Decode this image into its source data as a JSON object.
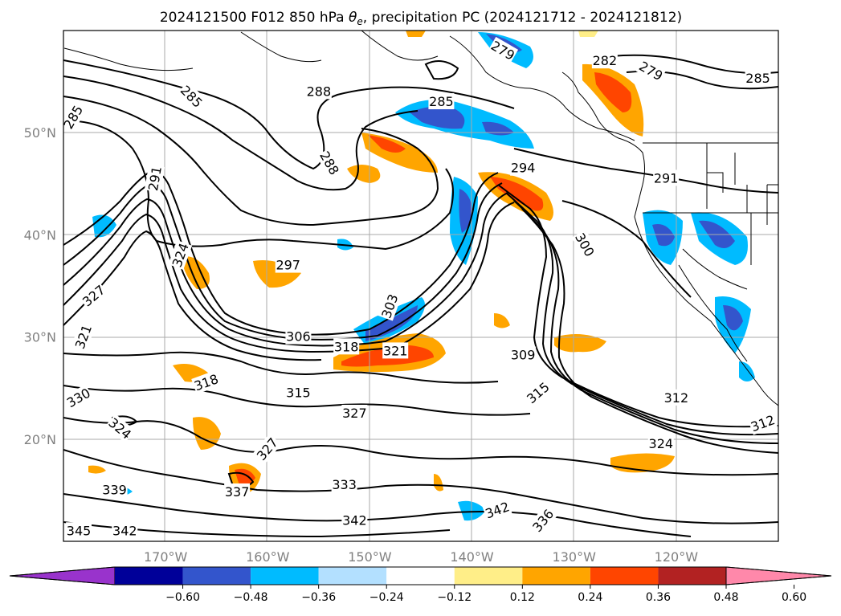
{
  "title": {
    "prefix": "2024121500 F012 850 hPa ",
    "theta": "θ",
    "theta_sub": "e",
    "suffix": ", precipitation PC (2024121712 - 2024121812)"
  },
  "axes": {
    "lon_ticks": [
      {
        "lon": -170,
        "label": "170°W"
      },
      {
        "lon": -160,
        "label": "160°W"
      },
      {
        "lon": -150,
        "label": "150°W"
      },
      {
        "lon": -140,
        "label": "140°W"
      },
      {
        "lon": -130,
        "label": "130°W"
      },
      {
        "lon": -120,
        "label": "120°W"
      }
    ],
    "lat_ticks": [
      {
        "lat": 50,
        "label": "50°N"
      },
      {
        "lat": 40,
        "label": "40°N"
      },
      {
        "lat": 30,
        "label": "30°N"
      },
      {
        "lat": 20,
        "label": "20°N"
      }
    ],
    "lon_range": [
      -180,
      -110
    ],
    "lat_range": [
      10,
      60
    ]
  },
  "colorbar": {
    "colors": [
      "#9933cc",
      "#000099",
      "#3355cc",
      "#00bbff",
      "#b3e0ff",
      "#ffffff",
      "#ffee88",
      "#ffa500",
      "#ff4500",
      "#b22222",
      "#ff88aa"
    ],
    "labels": [
      "−0.60",
      "−0.48",
      "−0.36",
      "−0.24",
      "−0.12",
      "0.12",
      "0.24",
      "0.36",
      "0.48",
      "0.60"
    ],
    "values": [
      -0.6,
      -0.48,
      -0.36,
      -0.24,
      -0.12,
      0.12,
      0.24,
      0.36,
      0.48,
      0.6
    ]
  },
  "contour_labels": [
    {
      "text": "285",
      "lon": -179,
      "lat": 51.5,
      "rot": -60
    },
    {
      "text": "285",
      "lon": -167.5,
      "lat": 53.5,
      "rot": 45
    },
    {
      "text": "288",
      "lon": -155,
      "lat": 54,
      "rot": 0
    },
    {
      "text": "288",
      "lon": -154,
      "lat": 47,
      "rot": 60
    },
    {
      "text": "285",
      "lon": -143,
      "lat": 53,
      "rot": 0
    },
    {
      "text": "291",
      "lon": -171,
      "lat": 45.5,
      "rot": -80
    },
    {
      "text": "297",
      "lon": -158,
      "lat": 37,
      "rot": 0
    },
    {
      "text": "294",
      "lon": -135,
      "lat": 46.5,
      "rot": 0
    },
    {
      "text": "291",
      "lon": -121,
      "lat": 45.5,
      "rot": 0
    },
    {
      "text": "300",
      "lon": -129,
      "lat": 39,
      "rot": 60
    },
    {
      "text": "282",
      "lon": -127,
      "lat": 57,
      "rot": 0
    },
    {
      "text": "279",
      "lon": -122.5,
      "lat": 56,
      "rot": 30
    },
    {
      "text": "285",
      "lon": -112,
      "lat": 55.3,
      "rot": 0
    },
    {
      "text": "279",
      "lon": -137,
      "lat": 58,
      "rot": 30
    },
    {
      "text": "327",
      "lon": -177,
      "lat": 34,
      "rot": -40
    },
    {
      "text": "324",
      "lon": -168.5,
      "lat": 38,
      "rot": -70
    },
    {
      "text": "306",
      "lon": -157,
      "lat": 30,
      "rot": 0
    },
    {
      "text": "303",
      "lon": -148,
      "lat": 33,
      "rot": -70
    },
    {
      "text": "318",
      "lon": -152.3,
      "lat": 29,
      "rot": 0
    },
    {
      "text": "321",
      "lon": -147.5,
      "lat": 28.6,
      "rot": 0
    },
    {
      "text": "309",
      "lon": -135,
      "lat": 28.2,
      "rot": 0
    },
    {
      "text": "321",
      "lon": -178,
      "lat": 30,
      "rot": -70
    },
    {
      "text": "318",
      "lon": -166,
      "lat": 25.5,
      "rot": -20
    },
    {
      "text": "315",
      "lon": -157,
      "lat": 24.5,
      "rot": 0
    },
    {
      "text": "327",
      "lon": -151.5,
      "lat": 22.5,
      "rot": 0
    },
    {
      "text": "315",
      "lon": -133.5,
      "lat": 24.5,
      "rot": -40
    },
    {
      "text": "312",
      "lon": -120,
      "lat": 24,
      "rot": 0
    },
    {
      "text": "312",
      "lon": -111.5,
      "lat": 21.5,
      "rot": -20
    },
    {
      "text": "330",
      "lon": -178.5,
      "lat": 24,
      "rot": -30
    },
    {
      "text": "324",
      "lon": -174.5,
      "lat": 21,
      "rot": 40
    },
    {
      "text": "327",
      "lon": -160,
      "lat": 19,
      "rot": -50
    },
    {
      "text": "324",
      "lon": -121.5,
      "lat": 19.5,
      "rot": 0
    },
    {
      "text": "339",
      "lon": -175,
      "lat": 15,
      "rot": 0
    },
    {
      "text": "333",
      "lon": -152.5,
      "lat": 15.5,
      "rot": 0
    },
    {
      "text": "337",
      "lon": -163,
      "lat": 14.8,
      "rot": 0
    },
    {
      "text": "342",
      "lon": -137.5,
      "lat": 13,
      "rot": -20
    },
    {
      "text": "336",
      "lon": -133,
      "lat": 12,
      "rot": -50
    },
    {
      "text": "342",
      "lon": -151.5,
      "lat": 12,
      "rot": 0
    },
    {
      "text": "345",
      "lon": -178.5,
      "lat": 11,
      "rot": 0
    },
    {
      "text": "342",
      "lon": -174,
      "lat": 11,
      "rot": 0
    }
  ]
}
